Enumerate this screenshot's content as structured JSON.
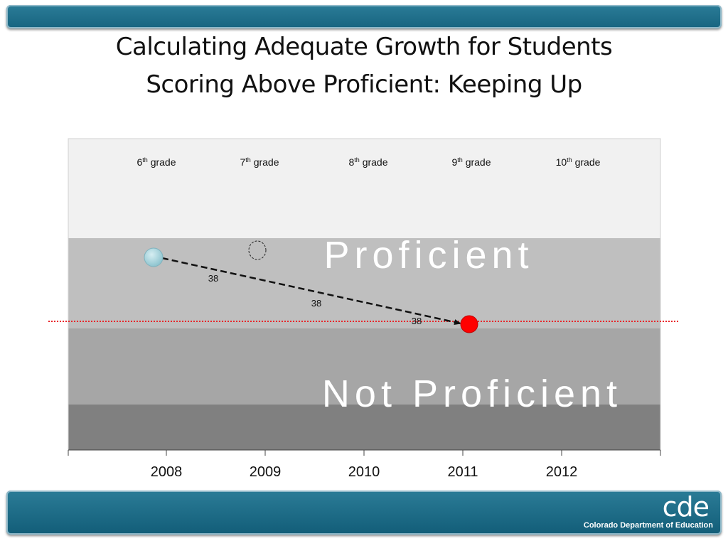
{
  "slide": {
    "title_line1": "Calculating Adequate Growth for Students",
    "title_line2": "Scoring Above Proficient: Keeping Up"
  },
  "footer": {
    "logo_mark": "cde",
    "logo_text": "Colorado Department of Education"
  },
  "colors": {
    "header_bar": "#1e6f8c",
    "start_point": "#a8d4dc",
    "target_point": "#ff0000",
    "target_line": "#e8262a"
  },
  "chart_data": {
    "type": "scatter",
    "grades": [
      {
        "num": "6",
        "sup": "th",
        "word": "grade"
      },
      {
        "num": "7",
        "sup": "th",
        "word": "grade"
      },
      {
        "num": "8",
        "sup": "th",
        "word": "grade"
      },
      {
        "num": "9",
        "sup": "th",
        "word": "grade"
      },
      {
        "num": "10",
        "sup": "th",
        "word": "grade"
      }
    ],
    "years": [
      "2008",
      "2009",
      "2010",
      "2011",
      "2012"
    ],
    "band_labels": {
      "proficient": "Proficient",
      "not_proficient": "Not Proficient"
    },
    "growth_labels": [
      "38",
      "38",
      "38"
    ],
    "start_point": {
      "year": "2008",
      "level": 0.65
    },
    "target_point": {
      "year": "2011",
      "level": 0.47
    },
    "placeholder_point": {
      "year": "2009",
      "level": 0.63
    }
  }
}
